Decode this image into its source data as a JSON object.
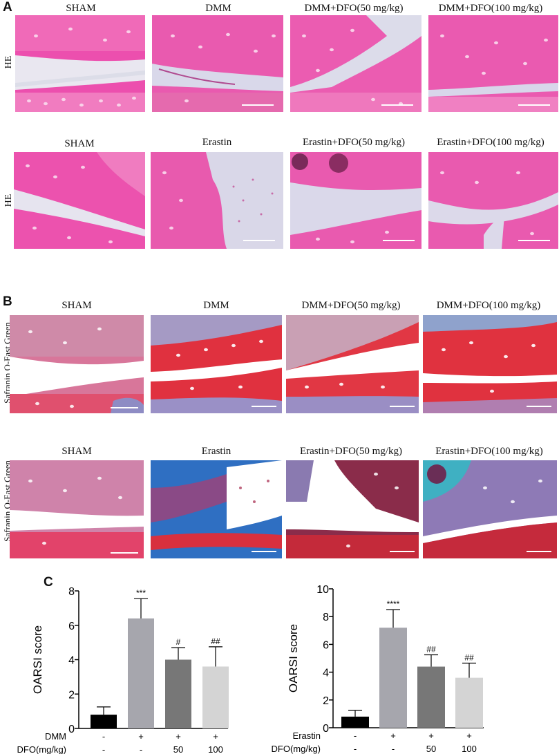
{
  "panels": {
    "A": {
      "letter": "A",
      "rows": [
        {
          "stain": "HE",
          "labels": [
            "SHAM",
            "DMM",
            "DMM+DFO(50 mg/kg)",
            "DMM+DFO(100 mg/kg)"
          ]
        },
        {
          "stain": "HE",
          "labels": [
            "SHAM",
            "Erastin",
            "Erastin+DFO(50 mg/kg)",
            "Erastin+DFO(100 mg/kg)"
          ]
        }
      ]
    },
    "B": {
      "letter": "B",
      "rows": [
        {
          "stain": "Safranin O-Fast Green",
          "labels": [
            "SHAM",
            "DMM",
            "DMM+DFO(50 mg/kg)",
            "DMM+DFO(100 mg/kg)"
          ]
        },
        {
          "stain": "Safranin O-Fast Green",
          "labels": [
            "SHAM",
            "Erastin",
            "Erastin+DFO(50 mg/kg)",
            "Erastin+DFO(100 mg/kg)"
          ]
        }
      ]
    },
    "C": {
      "letter": "C"
    }
  },
  "chart_data": [
    {
      "type": "bar",
      "ylabel": "OARSI score",
      "ylim": [
        0,
        8
      ],
      "yticks": [
        0,
        2,
        4,
        6,
        8
      ],
      "values": [
        0.8,
        6.4,
        4.0,
        3.6
      ],
      "errors": [
        0.45,
        1.15,
        0.7,
        1.15
      ],
      "annotations": [
        "",
        "***",
        "#",
        "##"
      ],
      "colors": [
        "#000000",
        "#a6a6ad",
        "#777777",
        "#d4d4d4"
      ],
      "groups": [
        {
          "name": "DMM",
          "values": [
            "-",
            "+",
            "+",
            "+"
          ]
        },
        {
          "name": "DFO(mg/kg)",
          "values": [
            "-",
            "-",
            "50",
            "100"
          ]
        }
      ]
    },
    {
      "type": "bar",
      "ylabel": "OARSI score",
      "ylim": [
        0,
        10
      ],
      "yticks": [
        0,
        2,
        4,
        6,
        8,
        10
      ],
      "values": [
        0.8,
        7.2,
        4.4,
        3.6
      ],
      "errors": [
        0.45,
        1.3,
        0.85,
        1.05
      ],
      "annotations": [
        "",
        "****",
        "##",
        "##"
      ],
      "colors": [
        "#000000",
        "#a6a6ad",
        "#777777",
        "#d4d4d4"
      ],
      "groups": [
        {
          "name": "Erastin",
          "values": [
            "-",
            "+",
            "+",
            "+"
          ]
        },
        {
          "name": "DFO(mg/kg)",
          "values": [
            "-",
            "-",
            "50",
            "100"
          ]
        }
      ]
    }
  ]
}
